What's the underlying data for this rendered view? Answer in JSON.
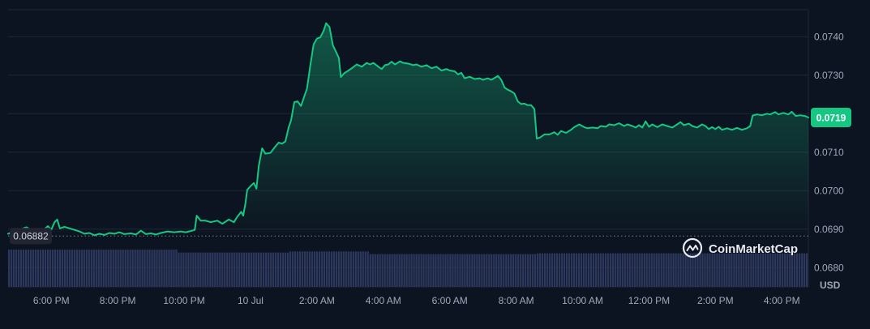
{
  "chart_data": {
    "type": "area",
    "title": "",
    "xlabel": "",
    "ylabel": "",
    "currency_label": "USD",
    "ylim": [
      0.0675,
      0.0747
    ],
    "y_ticks": [
      0.068,
      0.069,
      0.07,
      0.071,
      0.072,
      0.073,
      0.074
    ],
    "y_tick_labels": [
      "0.0680",
      "0.0690",
      "0.0700",
      "0.0710",
      "0.0720",
      "0.0730",
      "0.0740"
    ],
    "x_tick_labels": [
      "6:00 PM",
      "8:00 PM",
      "10:00 PM",
      "10 Jul",
      "2:00 AM",
      "4:00 AM",
      "6:00 AM",
      "8:00 AM",
      "10:00 AM",
      "12:00 PM",
      "2:00 PM",
      "4:00 PM"
    ],
    "x_tick_hours": [
      0,
      2,
      4,
      6,
      8,
      10,
      12,
      14,
      16,
      18,
      20,
      22
    ],
    "x_range_hours": [
      -1.3,
      22.8
    ],
    "reference_price": 0.06882,
    "reference_label": "0.06882",
    "current_price": 0.0719,
    "current_label": "0.0719",
    "line_color": "#16c784",
    "grid": true,
    "watermark": "CoinMarketCap",
    "series": [
      {
        "values": [
          [
            -1.3,
            0.06888
          ],
          [
            -0.75,
            0.06905
          ],
          [
            -0.6,
            0.06898
          ],
          [
            -0.4,
            0.06895
          ],
          [
            -0.25,
            0.06897
          ],
          [
            -0.1,
            0.06908
          ],
          [
            0.0,
            0.06898
          ],
          [
            0.1,
            0.06918
          ],
          [
            0.18,
            0.06925
          ],
          [
            0.26,
            0.06902
          ],
          [
            0.4,
            0.06906
          ],
          [
            0.55,
            0.06902
          ],
          [
            0.7,
            0.06898
          ],
          [
            0.85,
            0.06894
          ],
          [
            1.0,
            0.06888
          ],
          [
            1.15,
            0.0689
          ],
          [
            1.3,
            0.06884
          ],
          [
            1.45,
            0.06888
          ],
          [
            1.6,
            0.06885
          ],
          [
            1.75,
            0.0689
          ],
          [
            1.9,
            0.06888
          ],
          [
            2.05,
            0.06892
          ],
          [
            2.2,
            0.06887
          ],
          [
            2.4,
            0.06889
          ],
          [
            2.55,
            0.06886
          ],
          [
            2.7,
            0.06896
          ],
          [
            2.85,
            0.06887
          ],
          [
            3.0,
            0.06889
          ],
          [
            3.15,
            0.06886
          ],
          [
            3.3,
            0.0689
          ],
          [
            3.5,
            0.06894
          ],
          [
            3.7,
            0.06892
          ],
          [
            3.9,
            0.06894
          ],
          [
            4.05,
            0.06892
          ],
          [
            4.2,
            0.06895
          ],
          [
            4.32,
            0.06898
          ],
          [
            4.38,
            0.06935
          ],
          [
            4.5,
            0.06922
          ],
          [
            4.65,
            0.06922
          ],
          [
            4.8,
            0.06918
          ],
          [
            5.0,
            0.06922
          ],
          [
            5.15,
            0.06914
          ],
          [
            5.35,
            0.06925
          ],
          [
            5.5,
            0.06918
          ],
          [
            5.6,
            0.06932
          ],
          [
            5.72,
            0.06945
          ],
          [
            5.78,
            0.06935
          ],
          [
            5.85,
            0.06968
          ],
          [
            5.9,
            0.07002
          ],
          [
            6.0,
            0.07012
          ],
          [
            6.1,
            0.0702
          ],
          [
            6.18,
            0.07005
          ],
          [
            6.25,
            0.07065
          ],
          [
            6.35,
            0.0711
          ],
          [
            6.45,
            0.07096
          ],
          [
            6.6,
            0.07098
          ],
          [
            6.75,
            0.07115
          ],
          [
            6.85,
            0.07125
          ],
          [
            6.95,
            0.07122
          ],
          [
            7.05,
            0.07128
          ],
          [
            7.15,
            0.07165
          ],
          [
            7.22,
            0.07182
          ],
          [
            7.32,
            0.0723
          ],
          [
            7.42,
            0.07232
          ],
          [
            7.52,
            0.0722
          ],
          [
            7.62,
            0.07245
          ],
          [
            7.7,
            0.07265
          ],
          [
            7.8,
            0.07325
          ],
          [
            7.9,
            0.0738
          ],
          [
            8.0,
            0.07395
          ],
          [
            8.1,
            0.07398
          ],
          [
            8.2,
            0.07415
          ],
          [
            8.28,
            0.07435
          ],
          [
            8.38,
            0.07425
          ],
          [
            8.48,
            0.07378
          ],
          [
            8.58,
            0.0736
          ],
          [
            8.66,
            0.07345
          ],
          [
            8.72,
            0.07295
          ],
          [
            8.82,
            0.07305
          ],
          [
            8.95,
            0.07312
          ],
          [
            9.05,
            0.07318
          ],
          [
            9.2,
            0.07328
          ],
          [
            9.35,
            0.07322
          ],
          [
            9.5,
            0.07332
          ],
          [
            9.6,
            0.07328
          ],
          [
            9.7,
            0.07332
          ],
          [
            9.85,
            0.07322
          ],
          [
            9.95,
            0.07316
          ],
          [
            10.05,
            0.07326
          ],
          [
            10.15,
            0.07328
          ],
          [
            10.25,
            0.07335
          ],
          [
            10.35,
            0.07328
          ],
          [
            10.5,
            0.07336
          ],
          [
            10.6,
            0.07332
          ],
          [
            10.75,
            0.0733
          ],
          [
            10.9,
            0.07326
          ],
          [
            11.0,
            0.07328
          ],
          [
            11.15,
            0.07322
          ],
          [
            11.3,
            0.07326
          ],
          [
            11.45,
            0.07318
          ],
          [
            11.6,
            0.07322
          ],
          [
            11.75,
            0.07312
          ],
          [
            11.9,
            0.07316
          ],
          [
            12.0,
            0.07312
          ],
          [
            12.15,
            0.0731
          ],
          [
            12.25,
            0.07302
          ],
          [
            12.35,
            0.07306
          ],
          [
            12.45,
            0.07292
          ],
          [
            12.6,
            0.07296
          ],
          [
            12.75,
            0.0729
          ],
          [
            12.9,
            0.07292
          ],
          [
            13.0,
            0.07288
          ],
          [
            13.15,
            0.07292
          ],
          [
            13.25,
            0.07288
          ],
          [
            13.45,
            0.07298
          ],
          [
            13.55,
            0.07288
          ],
          [
            13.65,
            0.07268
          ],
          [
            13.75,
            0.07262
          ],
          [
            13.85,
            0.07258
          ],
          [
            13.95,
            0.07252
          ],
          [
            14.05,
            0.07232
          ],
          [
            14.15,
            0.07225
          ],
          [
            14.25,
            0.07226
          ],
          [
            14.35,
            0.07222
          ],
          [
            14.45,
            0.07222
          ],
          [
            14.55,
            0.07212
          ],
          [
            14.62,
            0.07135
          ],
          [
            14.72,
            0.07138
          ],
          [
            14.85,
            0.07146
          ],
          [
            15.0,
            0.07146
          ],
          [
            15.15,
            0.07152
          ],
          [
            15.25,
            0.07145
          ],
          [
            15.35,
            0.07155
          ],
          [
            15.5,
            0.0715
          ],
          [
            15.65,
            0.07158
          ],
          [
            15.75,
            0.07165
          ],
          [
            15.9,
            0.07172
          ],
          [
            16.05,
            0.07165
          ],
          [
            16.15,
            0.07162
          ],
          [
            16.3,
            0.07164
          ],
          [
            16.45,
            0.07162
          ],
          [
            16.55,
            0.07168
          ],
          [
            16.7,
            0.07166
          ],
          [
            16.8,
            0.07172
          ],
          [
            16.95,
            0.0717
          ],
          [
            17.1,
            0.07175
          ],
          [
            17.25,
            0.07168
          ],
          [
            17.35,
            0.07172
          ],
          [
            17.5,
            0.07168
          ],
          [
            17.6,
            0.07164
          ],
          [
            17.7,
            0.0717
          ],
          [
            17.8,
            0.07164
          ],
          [
            17.9,
            0.0718
          ],
          [
            18.0,
            0.07166
          ],
          [
            18.1,
            0.07172
          ],
          [
            18.25,
            0.07165
          ],
          [
            18.4,
            0.07172
          ],
          [
            18.55,
            0.07168
          ],
          [
            18.7,
            0.07164
          ],
          [
            18.85,
            0.07172
          ],
          [
            18.95,
            0.07178
          ],
          [
            19.05,
            0.0717
          ],
          [
            19.2,
            0.07174
          ],
          [
            19.3,
            0.07168
          ],
          [
            19.45,
            0.07164
          ],
          [
            19.6,
            0.07172
          ],
          [
            19.7,
            0.07168
          ],
          [
            19.8,
            0.0716
          ],
          [
            19.9,
            0.07165
          ],
          [
            20.0,
            0.0716
          ],
          [
            20.1,
            0.07166
          ],
          [
            20.2,
            0.07158
          ],
          [
            20.35,
            0.07162
          ],
          [
            20.5,
            0.07158
          ],
          [
            20.65,
            0.07163
          ],
          [
            20.8,
            0.07158
          ],
          [
            20.95,
            0.07162
          ],
          [
            21.05,
            0.07168
          ],
          [
            21.12,
            0.07195
          ],
          [
            21.25,
            0.07198
          ],
          [
            21.4,
            0.07196
          ],
          [
            21.55,
            0.072
          ],
          [
            21.65,
            0.07198
          ],
          [
            21.8,
            0.07204
          ],
          [
            21.9,
            0.07198
          ],
          [
            22.05,
            0.07202
          ],
          [
            22.2,
            0.07198
          ],
          [
            22.3,
            0.07205
          ],
          [
            22.42,
            0.07194
          ],
          [
            22.55,
            0.07196
          ],
          [
            22.7,
            0.07194
          ],
          [
            22.8,
            0.0719
          ]
        ]
      }
    ],
    "volume_level": 0.9
  }
}
